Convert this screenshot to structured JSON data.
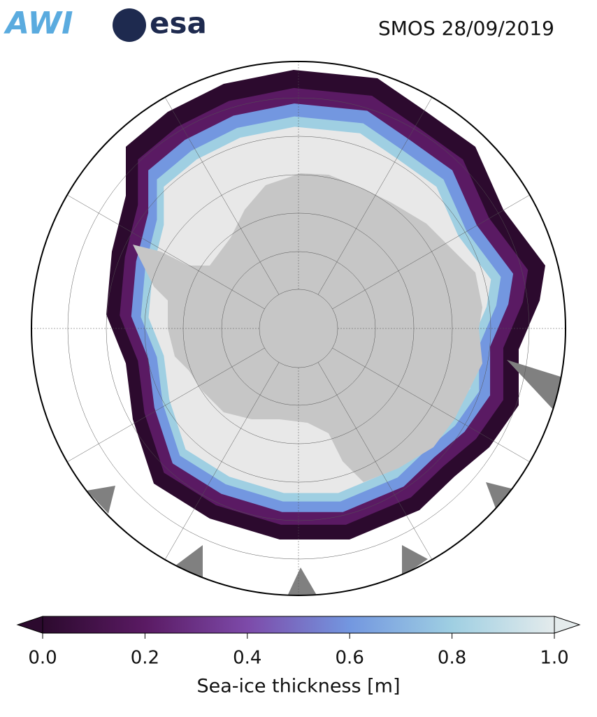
{
  "header": {
    "title": "SMOS 28/09/2019",
    "logos": [
      "AWI",
      "esa"
    ]
  },
  "colorbar": {
    "label": "Sea-ice thickness [m]",
    "lim": [
      0,
      1
    ],
    "ticks": [
      {
        "value": 0,
        "label": "0.0"
      },
      0.2,
      0.4,
      0.6,
      0.8,
      {
        "value": 1,
        "label": "1.0"
      }
    ],
    "colors": [
      "#2c0a2e",
      "#5a1a63",
      "#7d4aa9",
      "#7397e0",
      "#9fcfe2",
      "#e4ebec"
    ]
  }
}
